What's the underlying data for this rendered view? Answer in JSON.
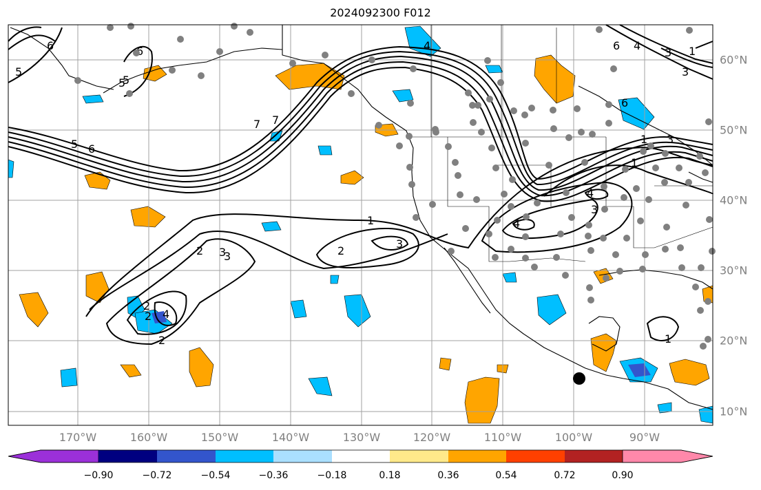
{
  "title": "2024092300 F012",
  "lon_labels": [
    "170°W",
    "160°W",
    "150°W",
    "140°W",
    "130°W",
    "120°W",
    "110°W",
    "100°W",
    "90°W"
  ],
  "lat_labels": [
    "60°N",
    "50°N",
    "40°N",
    "30°N",
    "20°N",
    "10°N"
  ],
  "colorbar": {
    "ticks": [
      "−0.90",
      "−0.72",
      "−0.54",
      "−0.36",
      "−0.18",
      "0.18",
      "0.36",
      "0.54",
      "0.72",
      "0.90"
    ],
    "colors": [
      "#9b30d9",
      "#000080",
      "#3355cc",
      "#00bfff",
      "#aadfff",
      "#ffffff",
      "#ffe98a",
      "#ffa500",
      "#ff4000",
      "#b22222",
      "#ff88aa"
    ]
  },
  "contour_labels": [
    "5",
    "6",
    "6",
    "5",
    "4",
    "3",
    "1",
    "1",
    "2",
    "3",
    "1",
    "2",
    "3",
    "2",
    "3",
    "4",
    "1",
    "2",
    "2",
    "4",
    "3",
    "4",
    "1",
    "3",
    "6",
    "3",
    "4",
    "5",
    "6",
    "5",
    "6",
    "7",
    "7"
  ],
  "colors": {
    "positive_fill": "#ffa500",
    "negative_fill": "#00bfff",
    "strong_negative": "#3355cc",
    "station_dot": "#808080",
    "grid": "#a0a0a0"
  }
}
